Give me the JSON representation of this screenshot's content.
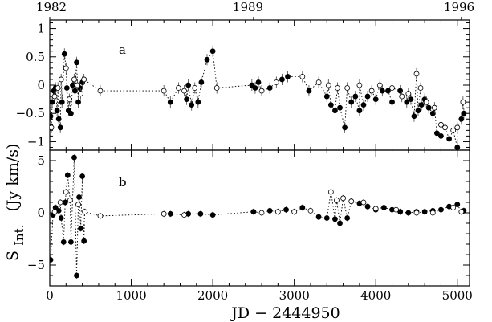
{
  "figure": {
    "ylabel_main": "S",
    "ylabel_sub": "Int.",
    "ylabel_unit": "(Jy km/s)",
    "xlabel": "JD − 2444950",
    "top_years": [
      "1982",
      "1989",
      "1996"
    ]
  },
  "chart_data": [
    {
      "type": "scatter",
      "panel_label": "a",
      "xlim": [
        0,
        5150
      ],
      "ylim": [
        -1.15,
        1.15
      ],
      "x_ticks": [
        0,
        1000,
        2000,
        3000,
        4000,
        5000
      ],
      "y_ticks": [
        -1,
        -0.5,
        0,
        0.5,
        1
      ],
      "y_tick_labels": [
        "−1",
        "−0.5",
        "0",
        "0.5",
        "1"
      ],
      "top_axis_years": [
        {
          "year": "1982",
          "x": 0
        },
        {
          "year": "1989",
          "x": 2500
        },
        {
          "year": "1996",
          "x": 5050
        }
      ],
      "series": [
        {
          "marker": "filled",
          "points": [
            [
              10,
              -0.55
            ],
            [
              30,
              -0.3
            ],
            [
              50,
              -0.1
            ],
            [
              70,
              -0.05
            ],
            [
              90,
              -0.45
            ],
            [
              110,
              -0.6
            ],
            [
              130,
              -0.75
            ],
            [
              150,
              -0.3
            ],
            [
              180,
              0.55
            ],
            [
              210,
              -0.05
            ],
            [
              230,
              -0.45
            ],
            [
              260,
              -0.5
            ],
            [
              280,
              0.0
            ],
            [
              310,
              -0.1
            ],
            [
              330,
              0.4
            ],
            [
              350,
              -0.3
            ],
            [
              370,
              -0.05
            ],
            [
              400,
              0.05
            ],
            [
              1480,
              -0.3
            ],
            [
              1680,
              -0.25
            ],
            [
              1700,
              0.0
            ],
            [
              1740,
              -0.35
            ],
            [
              1820,
              -0.3
            ],
            [
              1860,
              0.05
            ],
            [
              1930,
              0.45
            ],
            [
              2000,
              0.6
            ],
            [
              2480,
              0.0
            ],
            [
              2520,
              -0.05
            ],
            [
              2560,
              0.05
            ],
            [
              2700,
              -0.05
            ],
            [
              2850,
              0.1
            ],
            [
              2920,
              0.15
            ],
            [
              3180,
              -0.1
            ],
            [
              3400,
              -0.2
            ],
            [
              3450,
              -0.35
            ],
            [
              3500,
              -0.45
            ],
            [
              3560,
              -0.4
            ],
            [
              3620,
              -0.75
            ],
            [
              3700,
              -0.3
            ],
            [
              3750,
              -0.2
            ],
            [
              3800,
              -0.45
            ],
            [
              3850,
              -0.35
            ],
            [
              3900,
              -0.2
            ],
            [
              4000,
              -0.25
            ],
            [
              4080,
              -0.1
            ],
            [
              4150,
              -0.1
            ],
            [
              4200,
              -0.3
            ],
            [
              4300,
              -0.1
            ],
            [
              4380,
              -0.3
            ],
            [
              4430,
              -0.25
            ],
            [
              4470,
              -0.55
            ],
            [
              4520,
              -0.45
            ],
            [
              4560,
              -0.35
            ],
            [
              4600,
              -0.25
            ],
            [
              4650,
              -0.4
            ],
            [
              4700,
              -0.5
            ],
            [
              4750,
              -0.85
            ],
            [
              4800,
              -0.9
            ],
            [
              4900,
              -0.95
            ],
            [
              5000,
              -1.1
            ],
            [
              5050,
              -0.6
            ],
            [
              5080,
              -0.5
            ]
          ]
        },
        {
          "marker": "open",
          "points": [
            [
              20,
              -0.75
            ],
            [
              60,
              -0.2
            ],
            [
              100,
              -0.05
            ],
            [
              140,
              0.1
            ],
            [
              200,
              0.3
            ],
            [
              240,
              -0.25
            ],
            [
              300,
              0.1
            ],
            [
              340,
              0.0
            ],
            [
              380,
              -0.15
            ],
            [
              420,
              0.1
            ],
            [
              620,
              -0.1
            ],
            [
              1400,
              -0.1
            ],
            [
              1580,
              -0.05
            ],
            [
              1650,
              -0.1
            ],
            [
              1780,
              -0.05
            ],
            [
              2050,
              -0.05
            ],
            [
              2600,
              -0.1
            ],
            [
              2780,
              0.05
            ],
            [
              3100,
              0.15
            ],
            [
              3300,
              0.05
            ],
            [
              3420,
              0.0
            ],
            [
              3530,
              -0.05
            ],
            [
              3650,
              -0.05
            ],
            [
              3800,
              0.0
            ],
            [
              3950,
              -0.1
            ],
            [
              4050,
              0.0
            ],
            [
              4200,
              -0.05
            ],
            [
              4320,
              -0.2
            ],
            [
              4400,
              -0.15
            ],
            [
              4500,
              0.2
            ],
            [
              4550,
              -0.05
            ],
            [
              4620,
              -0.3
            ],
            [
              4720,
              -0.4
            ],
            [
              4800,
              -0.7
            ],
            [
              4850,
              -0.75
            ],
            [
              4950,
              -0.8
            ],
            [
              5000,
              -0.75
            ],
            [
              5070,
              -0.3
            ]
          ]
        }
      ]
    },
    {
      "type": "scatter",
      "panel_label": "b",
      "xlim": [
        0,
        5150
      ],
      "ylim": [
        -7,
        6
      ],
      "x_ticks": [
        0,
        1000,
        2000,
        3000,
        4000,
        5000
      ],
      "x_tick_labels": [
        "0",
        "1000",
        "2000",
        "3000",
        "4000",
        "5000"
      ],
      "y_ticks": [
        -5,
        0,
        5
      ],
      "y_tick_labels": [
        "−5",
        "0",
        "5"
      ],
      "series": [
        {
          "marker": "filled",
          "points": [
            [
              10,
              -4.5
            ],
            [
              40,
              -0.2
            ],
            [
              70,
              0.5
            ],
            [
              110,
              0.2
            ],
            [
              140,
              -0.5
            ],
            [
              170,
              -2.8
            ],
            [
              190,
              1.0
            ],
            [
              220,
              3.6
            ],
            [
              260,
              -2.8
            ],
            [
              300,
              5.3
            ],
            [
              330,
              -6.0
            ],
            [
              360,
              1.5
            ],
            [
              380,
              -1.5
            ],
            [
              400,
              3.5
            ],
            [
              420,
              -2.7
            ],
            [
              1480,
              -0.1
            ],
            [
              1700,
              -0.1
            ],
            [
              1850,
              -0.1
            ],
            [
              2000,
              -0.2
            ],
            [
              2500,
              0.1
            ],
            [
              2700,
              0.2
            ],
            [
              2900,
              0.3
            ],
            [
              3100,
              0.5
            ],
            [
              3300,
              -0.4
            ],
            [
              3400,
              -0.5
            ],
            [
              3500,
              -0.6
            ],
            [
              3560,
              -1.0
            ],
            [
              3650,
              -0.5
            ],
            [
              3800,
              0.9
            ],
            [
              3900,
              0.6
            ],
            [
              4000,
              0.3
            ],
            [
              4100,
              0.5
            ],
            [
              4200,
              0.3
            ],
            [
              4300,
              0.1
            ],
            [
              4400,
              0.0
            ],
            [
              4500,
              0.1
            ],
            [
              4600,
              0.1
            ],
            [
              4700,
              0.2
            ],
            [
              4800,
              0.3
            ],
            [
              4900,
              0.6
            ],
            [
              5000,
              0.8
            ],
            [
              5080,
              0.2
            ]
          ]
        },
        {
          "marker": "open",
          "points": [
            [
              60,
              0.1
            ],
            [
              130,
              1.0
            ],
            [
              200,
              2.0
            ],
            [
              250,
              1.2
            ],
            [
              350,
              0.8
            ],
            [
              430,
              0.1
            ],
            [
              620,
              -0.3
            ],
            [
              1400,
              -0.1
            ],
            [
              1650,
              -0.2
            ],
            [
              2600,
              0.0
            ],
            [
              2800,
              0.1
            ],
            [
              3000,
              0.1
            ],
            [
              3200,
              0.2
            ],
            [
              3450,
              2.0
            ],
            [
              3520,
              1.2
            ],
            [
              3600,
              1.4
            ],
            [
              3700,
              1.1
            ],
            [
              3850,
              1.0
            ],
            [
              4000,
              0.4
            ],
            [
              4250,
              0.3
            ],
            [
              4500,
              0.0
            ],
            [
              4700,
              0.0
            ],
            [
              4950,
              0.5
            ],
            [
              5050,
              0.1
            ]
          ]
        }
      ]
    }
  ]
}
